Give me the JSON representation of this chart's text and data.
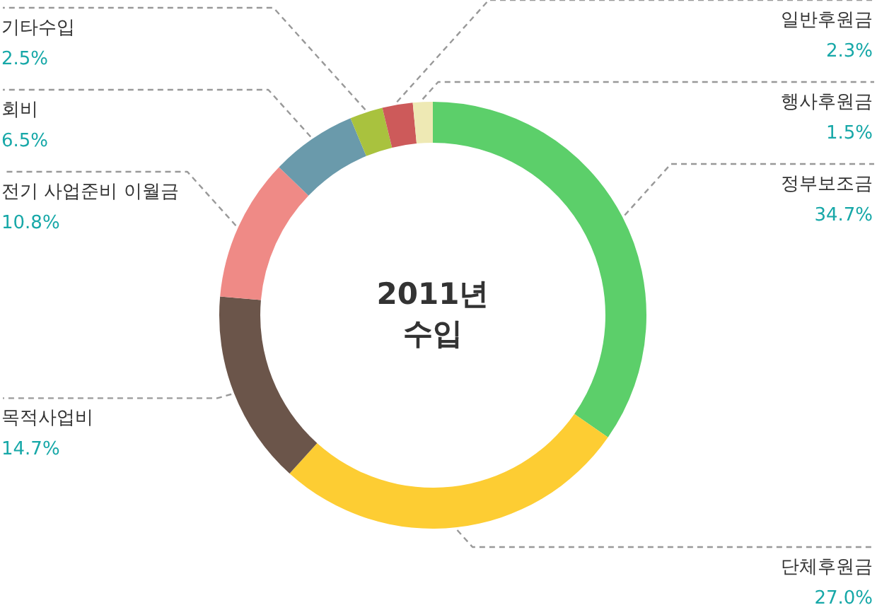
{
  "chart_data": {
    "type": "donut",
    "title": "2011년 수입",
    "categories": [
      "정부보조금",
      "단체후원금",
      "목적사업비",
      "전기 사업준비 이월금",
      "회비",
      "기타수입",
      "일반후원금",
      "행사후원금"
    ],
    "values": [
      34.7,
      27.0,
      14.7,
      10.8,
      6.5,
      2.5,
      2.3,
      1.5
    ],
    "value_labels": [
      "34.7%",
      "27.0%",
      "14.7%",
      "10.8%",
      "6.5%",
      "2.5%",
      "2.3%",
      "1.5%"
    ],
    "colors": [
      "#5ccf6a",
      "#fdcd33",
      "#6b554a",
      "#ef8a86",
      "#6a9aab",
      "#a9c23e",
      "#cd5a5a",
      "#eee9b4"
    ]
  }
}
